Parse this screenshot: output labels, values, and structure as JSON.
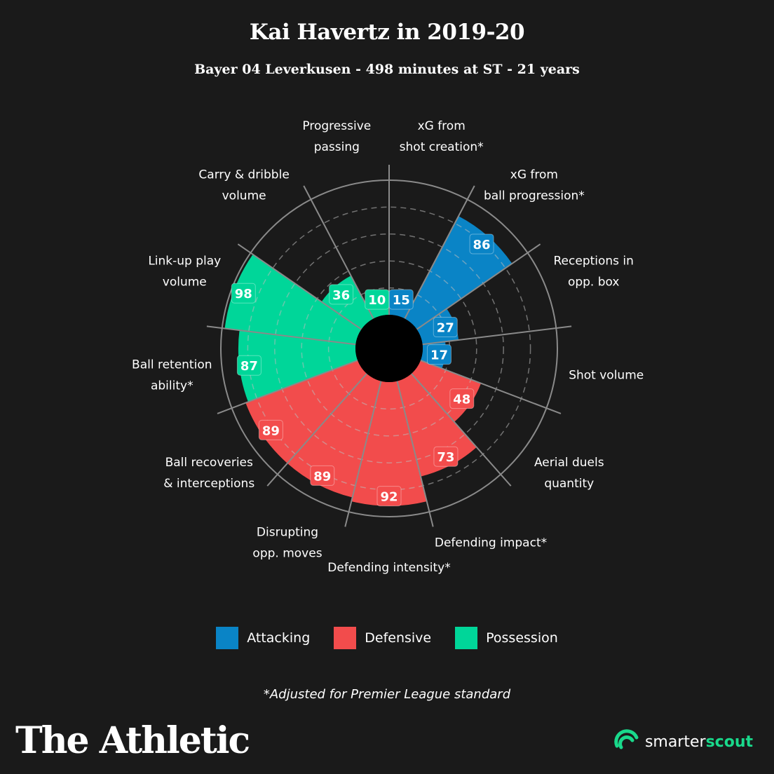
{
  "header": {
    "title": "Kai Havertz in 2019-20",
    "subtitle": "Bayer 04 Leverkusen - 498 minutes at ST - 21 years"
  },
  "colors": {
    "Attacking": "#0a84c6",
    "Defensive": "#f24c4c",
    "Possession": "#00d699",
    "background": "#1a1a1a"
  },
  "chart_data": {
    "type": "polar-bar",
    "title": "Kai Havertz in 2019-20",
    "scale": [
      0,
      100
    ],
    "ring_values": [
      20,
      40,
      60,
      80,
      100
    ],
    "metrics": [
      {
        "label": [
          "xG from",
          "shot creation*"
        ],
        "value": 15,
        "category": "Attacking"
      },
      {
        "label": [
          "xG from",
          "ball progression*"
        ],
        "value": 86,
        "category": "Attacking"
      },
      {
        "label": [
          "Receptions in",
          "opp. box"
        ],
        "value": 27,
        "category": "Attacking"
      },
      {
        "label": [
          "Shot volume"
        ],
        "value": 17,
        "category": "Attacking"
      },
      {
        "label": [
          "Aerial duels",
          "quantity"
        ],
        "value": 48,
        "category": "Defensive"
      },
      {
        "label": [
          "Defending impact*"
        ],
        "value": 73,
        "category": "Defensive"
      },
      {
        "label": [
          "Defending intensity*"
        ],
        "value": 92,
        "category": "Defensive"
      },
      {
        "label": [
          "Disrupting",
          "opp. moves"
        ],
        "value": 89,
        "category": "Defensive"
      },
      {
        "label": [
          "Ball recoveries",
          "& interceptions"
        ],
        "value": 89,
        "category": "Defensive"
      },
      {
        "label": [
          "Ball retention",
          "ability*"
        ],
        "value": 87,
        "category": "Possession"
      },
      {
        "label": [
          "Link-up play",
          "volume"
        ],
        "value": 98,
        "category": "Possession"
      },
      {
        "label": [
          "Carry & dribble",
          "volume"
        ],
        "value": 36,
        "category": "Possession"
      },
      {
        "label": [
          "Progressive",
          "passing"
        ],
        "value": 10,
        "category": "Possession"
      }
    ]
  },
  "legend": [
    {
      "label": "Attacking",
      "color": "#0a84c6"
    },
    {
      "label": "Defensive",
      "color": "#f24c4c"
    },
    {
      "label": "Possession",
      "color": "#00d699"
    }
  ],
  "footnote": "*Adjusted for Premier League standard",
  "branding": {
    "publisher": "The Athletic",
    "partner_prefix": "smarter",
    "partner_suffix": "scout"
  }
}
